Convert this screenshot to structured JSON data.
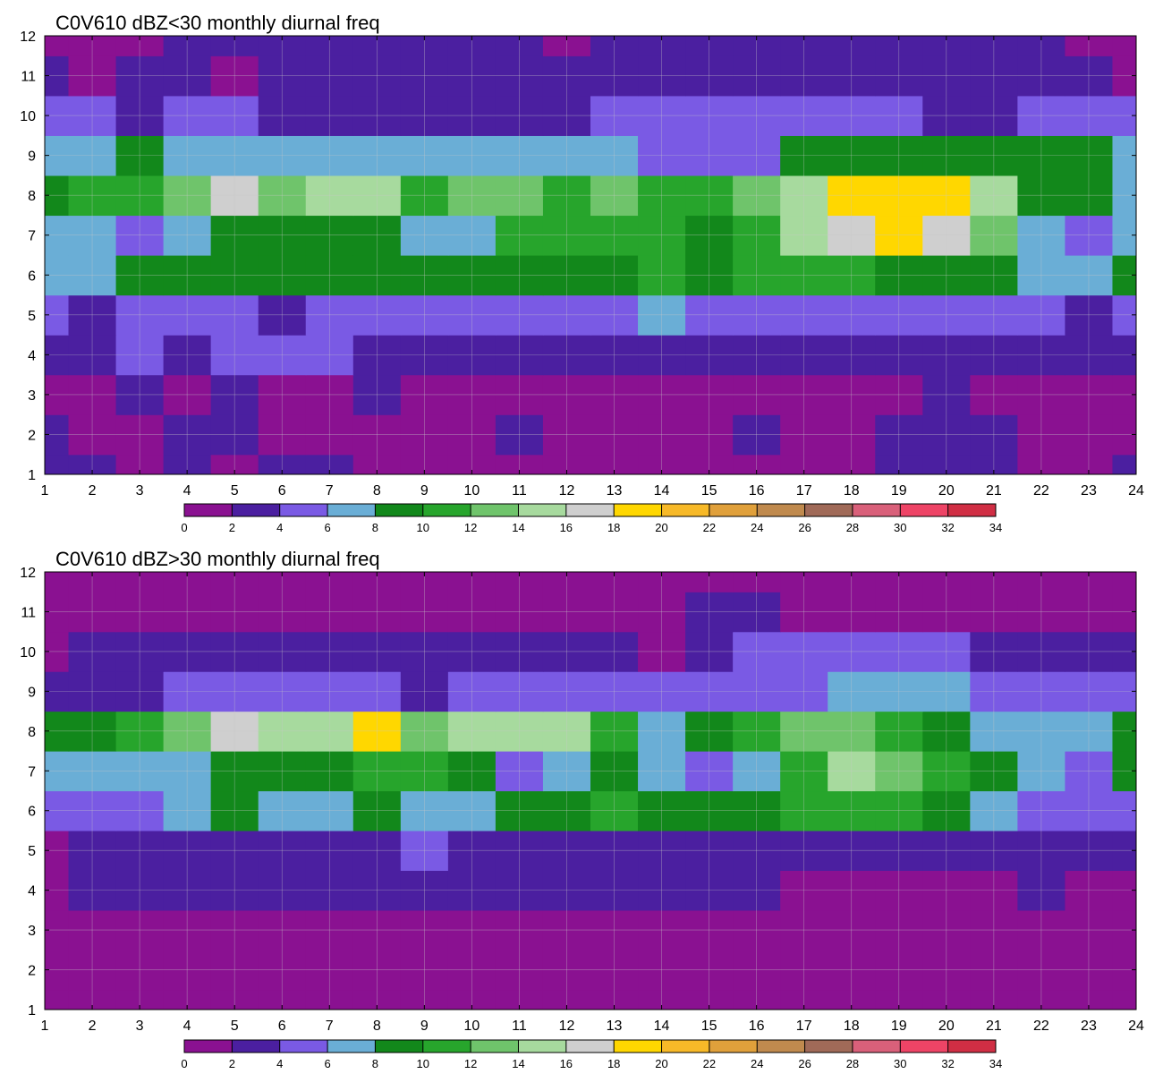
{
  "palette": {
    "levels": [
      0,
      2,
      4,
      6,
      8,
      10,
      12,
      14,
      16,
      18,
      20,
      22,
      24,
      26,
      28,
      30,
      32,
      34
    ],
    "colors": [
      "#8a1191",
      "#4b1fa0",
      "#7a5ae4",
      "#6aaed6",
      "#12881b",
      "#27a52c",
      "#6fc46b",
      "#a7da9e",
      "#cfcfcf",
      "#ffd700",
      "#f7b928",
      "#e0a03b",
      "#c08a4e",
      "#a06a58",
      "#d9607a",
      "#ee4466",
      "#d02e44"
    ],
    "contour_line": "#f0b030",
    "grid_line": "#c8c8c8"
  },
  "chart_data": [
    {
      "type": "heatmap",
      "title": "C0V610 dBZ<30 monthly diurnal freq",
      "xlabel": "",
      "ylabel": "",
      "x_ticks": [
        "1",
        "2",
        "3",
        "4",
        "5",
        "6",
        "7",
        "8",
        "9",
        "10",
        "11",
        "12",
        "13",
        "14",
        "15",
        "16",
        "17",
        "18",
        "19",
        "20",
        "21",
        "22",
        "23",
        "24"
      ],
      "y_ticks": [
        "1",
        "2",
        "3",
        "4",
        "5",
        "6",
        "7",
        "8",
        "9",
        "10",
        "11",
        "12"
      ],
      "xlim": [
        1,
        24
      ],
      "ylim": [
        1,
        12
      ],
      "grid": true,
      "legend_position": "bottom",
      "colorbar_ticks": [
        "0",
        "2",
        "4",
        "6",
        "8",
        "10",
        "12",
        "14",
        "16",
        "18",
        "20",
        "22",
        "24",
        "26",
        "28",
        "30",
        "32",
        "34"
      ],
      "x": [
        1,
        2,
        3,
        4,
        5,
        6,
        7,
        8,
        9,
        10,
        11,
        12,
        13,
        14,
        15,
        16,
        17,
        18,
        19,
        20,
        21,
        22,
        23,
        24
      ],
      "y": [
        1,
        2,
        3,
        4,
        5,
        6,
        7,
        8,
        9,
        10,
        11,
        12
      ],
      "z": [
        [
          3,
          3,
          1,
          3,
          1,
          2,
          2,
          1,
          1,
          1,
          1,
          1,
          1,
          1,
          1,
          1,
          1,
          1,
          3,
          3,
          2,
          1,
          1,
          3
        ],
        [
          3,
          1,
          1,
          3,
          3,
          1,
          1,
          1,
          1,
          1,
          3,
          1,
          1,
          1,
          1,
          3,
          1,
          1,
          3,
          3,
          3,
          1,
          1,
          1
        ],
        [
          1,
          1,
          3,
          1,
          3,
          1,
          1,
          3,
          1,
          1,
          1,
          1,
          1,
          1,
          1,
          1,
          1,
          1,
          1,
          3,
          1,
          1,
          1,
          1
        ],
        [
          3,
          3,
          5,
          3,
          5,
          5,
          5,
          3,
          3,
          3,
          3,
          3,
          3,
          3,
          3,
          3,
          3,
          3,
          3,
          3,
          3,
          3,
          3,
          3
        ],
        [
          5,
          3,
          5,
          5,
          5,
          3,
          5,
          5,
          5,
          5,
          5,
          5,
          5,
          7,
          5,
          5,
          5,
          5,
          5,
          5,
          5,
          5,
          3,
          5
        ],
        [
          7,
          7,
          9,
          9,
          9,
          9,
          9,
          9,
          9,
          9,
          9,
          9,
          9,
          11,
          9,
          11,
          11,
          11,
          9,
          9,
          9,
          7,
          7,
          9
        ],
        [
          7,
          7,
          5,
          7,
          9,
          9,
          9,
          9,
          7,
          7,
          11,
          11,
          11,
          11,
          9,
          11,
          15,
          17,
          19,
          17,
          13,
          7,
          5,
          7
        ],
        [
          9,
          11,
          11,
          13,
          17,
          13,
          15,
          15,
          11,
          13,
          13,
          11,
          13,
          11,
          11,
          13,
          15,
          19,
          19,
          19,
          15,
          9,
          9,
          7
        ],
        [
          7,
          7,
          9,
          7,
          7,
          7,
          7,
          7,
          7,
          7,
          7,
          7,
          7,
          5,
          5,
          5,
          9,
          9,
          9,
          9,
          9,
          9,
          9,
          7
        ],
        [
          5,
          5,
          3,
          5,
          5,
          3,
          3,
          3,
          3,
          3,
          3,
          3,
          5,
          5,
          5,
          5,
          5,
          5,
          5,
          3,
          3,
          5,
          5,
          5
        ],
        [
          3,
          1,
          3,
          3,
          1,
          3,
          3,
          3,
          3,
          3,
          3,
          3,
          3,
          3,
          3,
          3,
          3,
          3,
          3,
          3,
          3,
          3,
          3,
          1
        ],
        [
          1,
          1,
          1,
          3,
          3,
          3,
          3,
          3,
          3,
          3,
          3,
          1,
          3,
          3,
          3,
          3,
          3,
          3,
          3,
          3,
          3,
          3,
          1,
          1
        ]
      ]
    },
    {
      "type": "heatmap",
      "title": "C0V610 dBZ>30 monthly diurnal freq",
      "xlabel": "",
      "ylabel": "",
      "x_ticks": [
        "1",
        "2",
        "3",
        "4",
        "5",
        "6",
        "7",
        "8",
        "9",
        "10",
        "11",
        "12",
        "13",
        "14",
        "15",
        "16",
        "17",
        "18",
        "19",
        "20",
        "21",
        "22",
        "23",
        "24"
      ],
      "y_ticks": [
        "1",
        "2",
        "3",
        "4",
        "5",
        "6",
        "7",
        "8",
        "9",
        "10",
        "11",
        "12"
      ],
      "xlim": [
        1,
        24
      ],
      "ylim": [
        1,
        12
      ],
      "grid": true,
      "legend_position": "bottom",
      "colorbar_ticks": [
        "0",
        "2",
        "4",
        "6",
        "8",
        "10",
        "12",
        "14",
        "16",
        "18",
        "20",
        "22",
        "24",
        "26",
        "28",
        "30",
        "32",
        "34"
      ],
      "x": [
        1,
        2,
        3,
        4,
        5,
        6,
        7,
        8,
        9,
        10,
        11,
        12,
        13,
        14,
        15,
        16,
        17,
        18,
        19,
        20,
        21,
        22,
        23,
        24
      ],
      "y": [
        1,
        2,
        3,
        4,
        5,
        6,
        7,
        8,
        9,
        10,
        11,
        12
      ],
      "z": [
        [
          1,
          1,
          1,
          1,
          1,
          1,
          1,
          1,
          1,
          1,
          1,
          1,
          1,
          1,
          1,
          1,
          1,
          1,
          1,
          1,
          1,
          1,
          1,
          1
        ],
        [
          1,
          1,
          1,
          1,
          1,
          1,
          1,
          1,
          1,
          1,
          1,
          1,
          1,
          1,
          1,
          1,
          1,
          1,
          1,
          1,
          1,
          1,
          1,
          1
        ],
        [
          1,
          1,
          1,
          1,
          1,
          1,
          1,
          1,
          1,
          1,
          1,
          1,
          1,
          1,
          1,
          1,
          1,
          1,
          1,
          1,
          1,
          1,
          1,
          1
        ],
        [
          1,
          3,
          3,
          3,
          3,
          3,
          3,
          3,
          3,
          3,
          3,
          3,
          3,
          3,
          3,
          3,
          1,
          1,
          1,
          1,
          1,
          3,
          1,
          1
        ],
        [
          1,
          3,
          3,
          3,
          3,
          3,
          3,
          3,
          5,
          3,
          3,
          3,
          3,
          3,
          3,
          3,
          3,
          3,
          3,
          3,
          3,
          3,
          3,
          3
        ],
        [
          5,
          5,
          5,
          7,
          9,
          7,
          7,
          9,
          7,
          7,
          9,
          9,
          11,
          9,
          9,
          9,
          11,
          11,
          11,
          9,
          7,
          5,
          5,
          5
        ],
        [
          7,
          7,
          7,
          7,
          9,
          9,
          9,
          11,
          11,
          9,
          5,
          7,
          9,
          7,
          5,
          7,
          11,
          15,
          13,
          11,
          9,
          7,
          5,
          9
        ],
        [
          9,
          9,
          11,
          13,
          17,
          15,
          15,
          19,
          13,
          15,
          15,
          15,
          11,
          7,
          9,
          11,
          13,
          13,
          11,
          9,
          7,
          7,
          7,
          9
        ],
        [
          3,
          3,
          3,
          5,
          5,
          5,
          5,
          5,
          3,
          5,
          5,
          5,
          5,
          5,
          5,
          5,
          5,
          7,
          7,
          7,
          5,
          5,
          5,
          5
        ],
        [
          1,
          3,
          3,
          3,
          3,
          3,
          3,
          3,
          3,
          3,
          3,
          3,
          3,
          1,
          3,
          5,
          5,
          5,
          5,
          5,
          3,
          3,
          3,
          3
        ],
        [
          1,
          1,
          1,
          1,
          1,
          1,
          1,
          1,
          1,
          1,
          1,
          1,
          1,
          1,
          3,
          3,
          1,
          1,
          1,
          1,
          1,
          1,
          1,
          1
        ],
        [
          1,
          1,
          1,
          1,
          1,
          1,
          1,
          1,
          1,
          1,
          1,
          1,
          1,
          1,
          1,
          1,
          1,
          1,
          1,
          1,
          1,
          1,
          1,
          1
        ]
      ]
    }
  ]
}
